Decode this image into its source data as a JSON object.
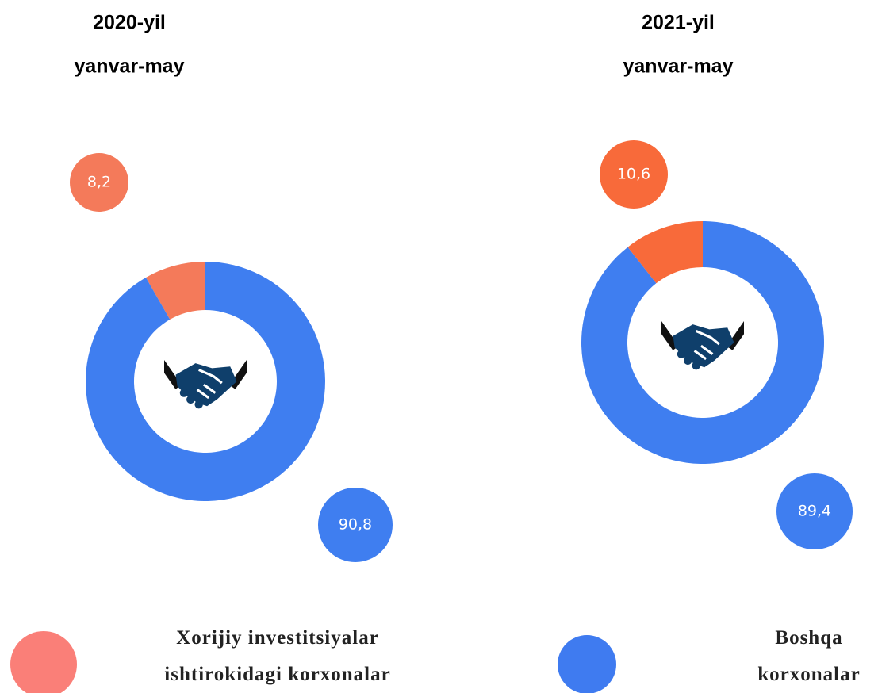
{
  "chart_data": {
    "type": "donut",
    "categories": [
      "Xorijiy investitsiyalar ishtirokidagi korxonalar",
      "Boshqa korxonalar"
    ],
    "legend_colors": [
      "#fa7f78",
      "#3f7bf0"
    ],
    "charts": [
      {
        "title": "2020-yil",
        "subtitle": "yanvar-may",
        "values": [
          8.2,
          90.8
        ],
        "value_labels": [
          "8,2",
          "90,8"
        ],
        "colors": [
          "#f47a5a",
          "#3f7ef0"
        ]
      },
      {
        "title": "2021-yil",
        "subtitle": "yanvar-may",
        "values": [
          10.6,
          89.4
        ],
        "value_labels": [
          "10,6",
          "89,4"
        ],
        "colors": [
          "#f86a3a",
          "#3f7ef0"
        ]
      }
    ]
  }
}
